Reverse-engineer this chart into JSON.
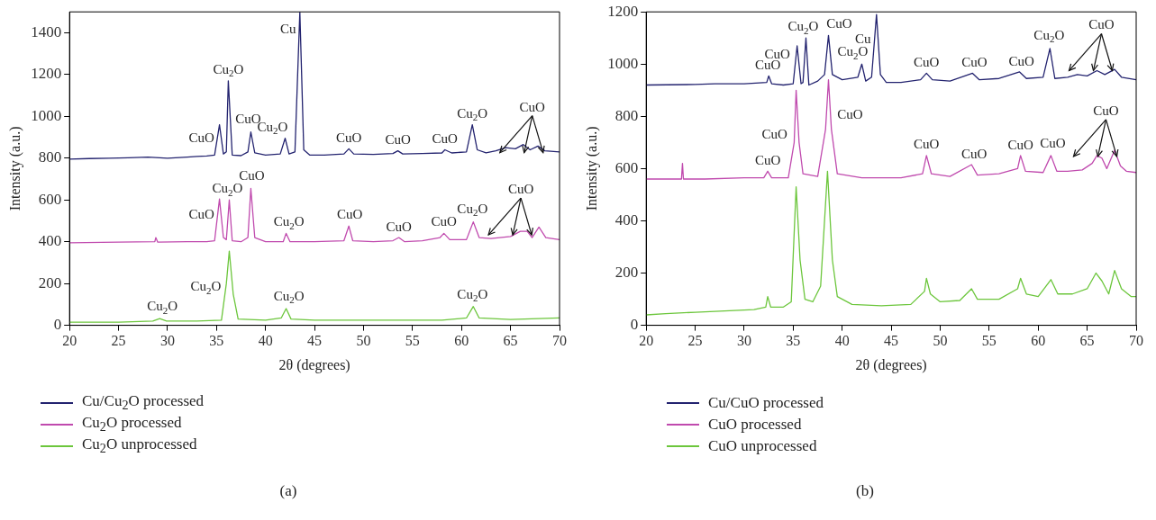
{
  "chart_data": [
    {
      "type": "line",
      "xlabel": "2θ (degrees)",
      "ylabel": "Intensity (a.u.)",
      "xlim": [
        20,
        70
      ],
      "xticks": [
        20,
        25,
        30,
        35,
        40,
        45,
        50,
        55,
        60,
        65,
        70
      ],
      "ylim": [
        0,
        1500
      ],
      "yticks": [
        0,
        200,
        400,
        600,
        800,
        1000,
        1200,
        1400
      ],
      "grid": false,
      "legend": "bottom",
      "marker": "none",
      "series": [
        {
          "name": "Cu/Cu$_{2}$O processed",
          "color": "#23236f",
          "x": [
            20,
            22,
            24,
            26,
            28,
            30,
            32,
            33,
            34,
            34.8,
            35.3,
            35.7,
            36.0,
            36.2,
            36.6,
            37.5,
            38.2,
            38.5,
            38.9,
            40,
            41.5,
            42,
            42.4,
            43,
            43.5,
            43.9,
            44.5,
            46,
            48,
            48.5,
            49,
            51,
            53,
            53.5,
            54,
            56,
            58,
            58.3,
            59,
            60.5,
            61.1,
            61.6,
            62.5,
            63.5,
            64.5,
            65.5,
            66.3,
            67,
            67.8,
            68.5,
            70
          ],
          "values": [
            795,
            798,
            800,
            802,
            805,
            800,
            805,
            808,
            810,
            815,
            960,
            820,
            830,
            1170,
            815,
            812,
            830,
            925,
            825,
            815,
            820,
            895,
            820,
            830,
            1500,
            840,
            815,
            815,
            820,
            845,
            820,
            818,
            822,
            835,
            820,
            822,
            825,
            840,
            825,
            830,
            960,
            840,
            825,
            835,
            850,
            845,
            865,
            840,
            858,
            835,
            830
          ]
        },
        {
          "name": "Cu$_{2}$O processed",
          "color": "#c04aae",
          "x": [
            20,
            25,
            28.7,
            28.8,
            29,
            32,
            34,
            34.8,
            35.3,
            35.7,
            36.0,
            36.3,
            36.6,
            37.5,
            38.2,
            38.5,
            38.9,
            40,
            41.8,
            42.1,
            42.5,
            45,
            48,
            48.5,
            48.9,
            51,
            53,
            53.6,
            54.2,
            56,
            57.8,
            58.2,
            58.8,
            60.5,
            61.2,
            61.8,
            63,
            65,
            66,
            66.7,
            67.2,
            67.9,
            68.6,
            70
          ],
          "values": [
            395,
            398,
            400,
            420,
            398,
            400,
            400,
            405,
            605,
            420,
            410,
            600,
            405,
            400,
            420,
            655,
            420,
            400,
            400,
            440,
            400,
            400,
            405,
            475,
            405,
            400,
            405,
            420,
            400,
            405,
            420,
            440,
            410,
            410,
            495,
            420,
            415,
            425,
            450,
            450,
            420,
            470,
            420,
            410
          ]
        },
        {
          "name": "Cu$_{2}$O unprocessed",
          "color": "#6cc63c",
          "x": [
            20,
            25,
            28.5,
            29.2,
            29.9,
            33,
            35.5,
            36,
            36.3,
            36.7,
            37.2,
            40,
            41.6,
            42.1,
            42.6,
            45,
            50,
            55,
            58,
            60.5,
            61.2,
            61.8,
            65,
            70
          ],
          "values": [
            15,
            15,
            20,
            32,
            20,
            20,
            25,
            200,
            355,
            150,
            30,
            25,
            35,
            80,
            30,
            25,
            25,
            25,
            25,
            35,
            90,
            35,
            28,
            35
          ]
        }
      ],
      "annotations": [
        {
          "text": "CuO",
          "x": 35.3,
          "y": 960
        },
        {
          "text": "Cu$_{2}$O",
          "x": 36.2,
          "y": 1170
        },
        {
          "text": "CuO",
          "x": 38.5,
          "y": 925
        },
        {
          "text": "Cu$_{2}$O",
          "x": 42,
          "y": 895
        },
        {
          "text": "Cu",
          "x": 43.5,
          "y": 1500
        },
        {
          "text": "CuO",
          "x": 48.5,
          "y": 845
        },
        {
          "text": "CuO",
          "x": 53.5,
          "y": 835
        },
        {
          "text": "CuO",
          "x": 58.3,
          "y": 840
        },
        {
          "text": "Cu$_{2}$O",
          "x": 61.1,
          "y": 960
        },
        {
          "text": "CuO",
          "x": 66.3,
          "y": 865
        },
        {
          "text": "CuO",
          "x": 35.3,
          "y": 605
        },
        {
          "text": "Cu$_{2}$O",
          "x": 36.3,
          "y": 600
        },
        {
          "text": "CuO",
          "x": 38.5,
          "y": 655
        },
        {
          "text": "Cu$_{2}$O",
          "x": 42.1,
          "y": 440
        },
        {
          "text": "CuO",
          "x": 48.5,
          "y": 475
        },
        {
          "text": "CuO",
          "x": 53.6,
          "y": 420
        },
        {
          "text": "CuO",
          "x": 58.2,
          "y": 440
        },
        {
          "text": "Cu$_{2}$O",
          "x": 61.2,
          "y": 495
        },
        {
          "text": "CuO",
          "x": 66.7,
          "y": 450
        },
        {
          "text": "Cu$_{2}$O",
          "x": 29.2,
          "y": 32
        },
        {
          "text": "Cu$_{2}$O",
          "x": 36.3,
          "y": 355
        },
        {
          "text": "Cu$_{2}$O",
          "x": 42.1,
          "y": 80
        },
        {
          "text": "Cu$_{2}$O",
          "x": 61.2,
          "y": 90
        },
        "(a)"
      ]
    },
    {
      "type": "line",
      "xlabel": "2θ (degrees)",
      "ylabel": "Intensity (a.u.)",
      "xlim": [
        20,
        70
      ],
      "xticks": [
        20,
        25,
        30,
        35,
        40,
        45,
        50,
        55,
        60,
        65,
        70
      ],
      "ylim": [
        0,
        1200
      ],
      "yticks": [
        0,
        200,
        400,
        600,
        800,
        1000,
        1200
      ],
      "grid": false,
      "legend": "bottom",
      "marker": "none",
      "series": [
        {
          "name": "Cu/CuO processed",
          "color": "#23236f",
          "x": [
            20,
            25,
            27,
            30,
            32.3,
            32.5,
            32.8,
            34,
            35,
            35.4,
            35.8,
            36.0,
            36.3,
            36.6,
            37.5,
            38.2,
            38.6,
            39,
            40,
            41.6,
            42,
            42.4,
            43,
            43.5,
            43.9,
            44.5,
            46,
            48,
            48.6,
            49.2,
            51,
            53.3,
            54,
            56,
            58.1,
            58.8,
            60.5,
            61.2,
            61.7,
            63,
            64,
            65,
            66,
            66.8,
            67.8,
            68.5,
            70
          ],
          "values": [
            920,
            922,
            925,
            925,
            930,
            955,
            925,
            920,
            925,
            1070,
            925,
            930,
            1100,
            920,
            935,
            960,
            1110,
            960,
            940,
            950,
            1000,
            935,
            950,
            1190,
            960,
            930,
            930,
            940,
            965,
            940,
            935,
            965,
            940,
            945,
            970,
            945,
            950,
            1060,
            945,
            950,
            960,
            955,
            975,
            960,
            980,
            950,
            940
          ]
        },
        {
          "name": "CuO processed",
          "color": "#c04aae",
          "x": [
            20,
            23.6,
            23.7,
            23.8,
            26,
            30,
            32,
            32.4,
            32.8,
            34.5,
            35.1,
            35.3,
            35.6,
            36,
            37.5,
            38.3,
            38.6,
            38.9,
            39.5,
            42,
            46,
            48.2,
            48.6,
            49.1,
            51,
            53.2,
            53.8,
            56,
            57.9,
            58.2,
            58.7,
            60.5,
            61.3,
            61.9,
            63,
            64.5,
            65.5,
            66,
            66.5,
            67,
            67.8,
            68.4,
            69,
            70
          ],
          "values": [
            560,
            560,
            620,
            560,
            560,
            565,
            565,
            590,
            565,
            565,
            700,
            900,
            700,
            580,
            570,
            750,
            940,
            750,
            580,
            565,
            565,
            580,
            650,
            580,
            570,
            615,
            575,
            580,
            600,
            650,
            590,
            585,
            650,
            590,
            590,
            595,
            620,
            650,
            640,
            600,
            670,
            610,
            590,
            585
          ]
        },
        {
          "name": "CuO unprocessed",
          "color": "#6cc63c",
          "x": [
            20,
            22,
            25,
            28,
            31,
            32.2,
            32.4,
            32.7,
            34,
            34.8,
            35.3,
            35.7,
            36.2,
            37,
            37.8,
            38.5,
            39,
            39.5,
            41,
            44,
            47,
            48.4,
            48.6,
            49,
            50,
            52,
            53.2,
            53.8,
            56,
            57.9,
            58.2,
            58.8,
            60,
            61.3,
            62,
            63.5,
            65,
            65.9,
            66.5,
            67.2,
            67.8,
            68.5,
            69.5,
            70
          ],
          "values": [
            40,
            45,
            50,
            55,
            60,
            70,
            110,
            70,
            70,
            90,
            530,
            250,
            100,
            90,
            150,
            590,
            250,
            110,
            80,
            75,
            80,
            130,
            180,
            120,
            90,
            95,
            140,
            100,
            100,
            140,
            180,
            120,
            110,
            175,
            120,
            120,
            140,
            200,
            170,
            120,
            210,
            140,
            110,
            110
          ]
        }
      ],
      "annotations": [
        {
          "text": "CuO",
          "x": 32.5,
          "y": 955
        },
        {
          "text": "CuO",
          "x": 35.4,
          "y": 1070
        },
        {
          "text": "Cu$_{2}$O",
          "x": 36.3,
          "y": 1100
        },
        {
          "text": "CuO",
          "x": 38.6,
          "y": 1110
        },
        {
          "text": "Cu$_{2}$O",
          "x": 42,
          "y": 1000
        },
        {
          "text": "Cu",
          "x": 43.5,
          "y": 1190
        },
        {
          "text": "CuO",
          "x": 48.6,
          "y": 965
        },
        {
          "text": "CuO",
          "x": 53.3,
          "y": 965
        },
        {
          "text": "CuO",
          "x": 58.1,
          "y": 970
        },
        {
          "text": "Cu$_{2}$O",
          "x": 61.2,
          "y": 1060
        },
        {
          "text": "CuO",
          "x": 66,
          "y": 975
        },
        {
          "text": "CuO",
          "x": 32.4,
          "y": 590
        },
        {
          "text": "CuO",
          "x": 35.3,
          "y": 900
        },
        {
          "text": "CuO",
          "x": 38.6,
          "y": 940
        },
        {
          "text": "CuO",
          "x": 48.6,
          "y": 650
        },
        {
          "text": "CuO",
          "x": 53.2,
          "y": 615
        },
        {
          "text": "CuO",
          "x": 58.2,
          "y": 650
        },
        {
          "text": "CuO",
          "x": 61.3,
          "y": 650
        },
        {
          "text": "CuO",
          "x": 66,
          "y": 650
        },
        "(b)"
      ]
    }
  ]
}
